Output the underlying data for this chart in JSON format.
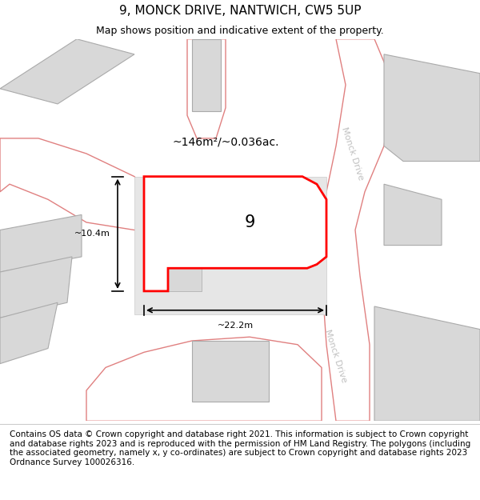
{
  "title": "9, MONCK DRIVE, NANTWICH, CW5 5UP",
  "subtitle": "Map shows position and indicative extent of the property.",
  "footer": "Contains OS data © Crown copyright and database right 2021. This information is subject to Crown copyright and database rights 2023 and is reproduced with the permission of HM Land Registry. The polygons (including the associated geometry, namely x, y co-ordinates) are subject to Crown copyright and database rights 2023 Ordnance Survey 100026316.",
  "bg_color": "#f5f5f5",
  "map_bg": "#f0f0f0",
  "building_fill": "#d8d8d8",
  "building_edge": "#aaaaaa",
  "road_color": "#e08080",
  "highlight_fill": "#ffffff",
  "highlight_edge": "#ff0000",
  "highlight_lw": 2.0,
  "area_label": "~146m²/~0.036ac.",
  "number_label": "9",
  "dim_width": "~22.2m",
  "dim_height": "~10.4m",
  "road_label_1": "Monck Drive",
  "road_label_2": "Monck Drive",
  "title_fontsize": 11,
  "subtitle_fontsize": 9,
  "footer_fontsize": 7.5
}
